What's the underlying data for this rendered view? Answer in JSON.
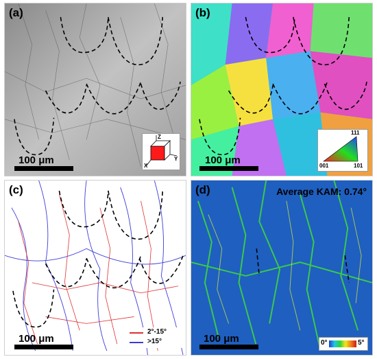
{
  "panels": {
    "a": {
      "label": "(a)",
      "scale": "100 μm"
    },
    "b": {
      "label": "(b)",
      "scale": "100 μm",
      "ipf": {
        "top": "111",
        "left": "001",
        "right": "101"
      }
    },
    "c": {
      "label": "(c)",
      "scale": "100 μm",
      "legend": [
        {
          "text": "2°-15°",
          "color": "#e03030"
        },
        {
          "text": ">15°",
          "color": "#3a3ad8"
        }
      ]
    },
    "d": {
      "label": "(d)",
      "scale": "100 μm",
      "kam_title": "Average KAM: 0.74°",
      "kam_min": "0°",
      "kam_max": "5°"
    }
  },
  "axes_inset": {
    "z": "Z",
    "x": "X",
    "y": "Y"
  }
}
